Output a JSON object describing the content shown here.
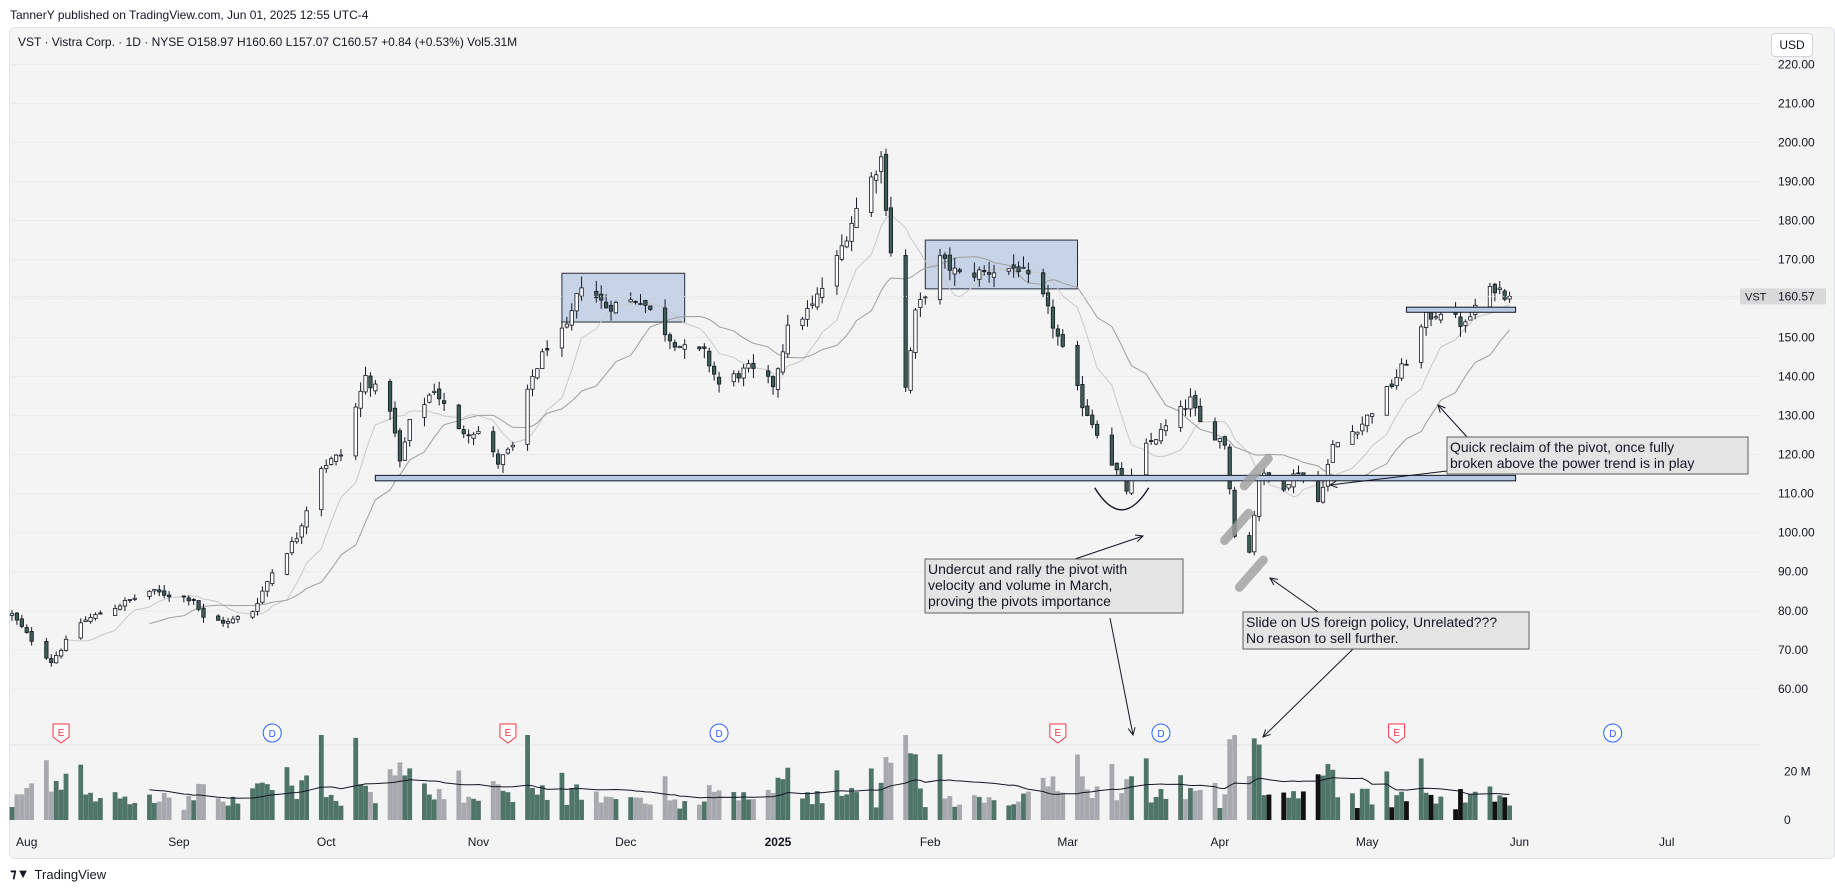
{
  "header": {
    "published": "TannerY published on TradingView.com, Jun 01, 2025 12:55 UTC-4"
  },
  "symbol_line": "VST · Vistra Corp. · 1D · NYSE  O158.97  H160.60  L157.07  C160.57  +0.84 (+0.53%)  Vol5.31M",
  "currency": "USD",
  "price_tag": {
    "symbol": "VST",
    "value": "160.57"
  },
  "footer": {
    "brand": "TradingView"
  },
  "events": [
    {
      "type": "E",
      "date": "2024-08-08"
    },
    {
      "type": "D",
      "date": "2024-09-20"
    },
    {
      "type": "E",
      "date": "2024-11-07"
    },
    {
      "type": "D",
      "date": "2024-12-20"
    },
    {
      "type": "E",
      "date": "2025-02-27"
    },
    {
      "type": "D",
      "date": "2025-03-20"
    },
    {
      "type": "E",
      "date": "2025-05-07"
    },
    {
      "type": "D",
      "date": "2025-06-20"
    }
  ],
  "annotations": [
    {
      "name": "annotation-undercut",
      "lines": [
        "Undercut and rally the pivot with",
        "velocity and volume in March,",
        "proving the pivots importance"
      ]
    },
    {
      "name": "annotation-slide",
      "lines": [
        "Slide on US foreign policy, Unrelated???",
        "No reason to sell further."
      ]
    },
    {
      "name": "annotation-reclaim",
      "lines": [
        "Quick reclaim of the pivot, once fully",
        "broken above the power trend is in play"
      ]
    }
  ],
  "chart_data": {
    "type": "candlestick",
    "symbol": "VST",
    "interval": "1D",
    "y_axis_ticks": [
      "60.00",
      "70.00",
      "80.00",
      "90.00",
      "100.00",
      "110.00",
      "120.00",
      "130.00",
      "140.00",
      "150.00",
      "160.00",
      "170.00",
      "180.00",
      "190.00",
      "200.00",
      "210.00",
      "220.00"
    ],
    "ylim": [
      52,
      225
    ],
    "x_axis_labels": [
      {
        "label": "Aug",
        "date": "2024-08-01"
      },
      {
        "label": "Sep",
        "date": "2024-09-01"
      },
      {
        "label": "Oct",
        "date": "2024-10-01"
      },
      {
        "label": "Nov",
        "date": "2024-11-01"
      },
      {
        "label": "Dec",
        "date": "2024-12-01"
      },
      {
        "label": "2025",
        "date": "2025-01-01",
        "bold": true
      },
      {
        "label": "Feb",
        "date": "2025-02-01"
      },
      {
        "label": "Mar",
        "date": "2025-03-01"
      },
      {
        "label": "Apr",
        "date": "2025-04-01"
      },
      {
        "label": "May",
        "date": "2025-05-01"
      },
      {
        "label": "Jun",
        "date": "2025-06-01"
      },
      {
        "label": "Jul",
        "date": "2025-07-01"
      }
    ],
    "volume_axis": {
      "ticks": [
        "20 M",
        "0"
      ],
      "max_millions": 35
    },
    "close_anchors": [
      [
        "2024-07-29",
        79
      ],
      [
        "2024-08-01",
        74
      ],
      [
        "2024-08-06",
        67
      ],
      [
        "2024-08-12",
        77
      ],
      [
        "2024-08-19",
        81
      ],
      [
        "2024-08-26",
        85
      ],
      [
        "2024-09-04",
        83
      ],
      [
        "2024-09-06",
        78
      ],
      [
        "2024-09-11",
        77
      ],
      [
        "2024-09-16",
        80
      ],
      [
        "2024-09-20",
        90
      ],
      [
        "2024-09-25",
        99
      ],
      [
        "2024-09-30",
        117
      ],
      [
        "2024-10-04",
        120
      ],
      [
        "2024-10-09",
        140
      ],
      [
        "2024-10-14",
        132
      ],
      [
        "2024-10-16",
        118
      ],
      [
        "2024-10-18",
        128
      ],
      [
        "2024-10-23",
        137
      ],
      [
        "2024-10-28",
        126
      ],
      [
        "2024-11-01",
        126
      ],
      [
        "2024-11-05",
        118
      ],
      [
        "2024-11-08",
        122
      ],
      [
        "2024-11-12",
        140
      ],
      [
        "2024-11-15",
        148
      ],
      [
        "2024-11-19",
        152
      ],
      [
        "2024-11-22",
        164
      ],
      [
        "2024-11-27",
        158
      ],
      [
        "2024-12-04",
        160
      ],
      [
        "2024-12-10",
        150
      ],
      [
        "2024-12-13",
        147
      ],
      [
        "2024-12-17",
        146
      ],
      [
        "2024-12-20",
        138
      ],
      [
        "2024-12-26",
        142
      ],
      [
        "2024-12-31",
        138
      ],
      [
        "2025-01-03",
        152
      ],
      [
        "2025-01-08",
        158
      ],
      [
        "2025-01-13",
        170
      ],
      [
        "2025-01-17",
        183
      ],
      [
        "2025-01-22",
        196
      ],
      [
        "2025-01-27",
        137
      ],
      [
        "2025-01-29",
        156
      ],
      [
        "2025-02-03",
        170
      ],
      [
        "2025-02-07",
        166
      ],
      [
        "2025-02-13",
        167
      ],
      [
        "2025-02-19",
        168
      ],
      [
        "2025-02-24",
        160
      ],
      [
        "2025-02-27",
        150
      ],
      [
        "2025-03-04",
        133
      ],
      [
        "2025-03-07",
        126
      ],
      [
        "2025-03-10",
        118
      ],
      [
        "2025-03-13",
        111
      ],
      [
        "2025-03-17",
        122
      ],
      [
        "2025-03-21",
        127
      ],
      [
        "2025-03-26",
        134
      ],
      [
        "2025-03-28",
        128
      ],
      [
        "2025-04-02",
        123
      ],
      [
        "2025-04-04",
        100
      ],
      [
        "2025-04-07",
        95
      ],
      [
        "2025-04-09",
        115
      ],
      [
        "2025-04-14",
        112
      ],
      [
        "2025-04-17",
        116
      ],
      [
        "2025-04-21",
        108
      ],
      [
        "2025-04-24",
        122
      ],
      [
        "2025-04-30",
        128
      ],
      [
        "2025-05-06",
        138
      ],
      [
        "2025-05-09",
        144
      ],
      [
        "2025-05-13",
        155
      ],
      [
        "2025-05-16",
        157
      ],
      [
        "2025-05-21",
        153
      ],
      [
        "2025-05-23",
        158
      ],
      [
        "2025-05-27",
        163
      ],
      [
        "2025-05-30",
        160.57
      ]
    ],
    "last_close": 160.57,
    "highlight_zones": [
      {
        "from": "2024-11-18",
        "to": "2024-12-13",
        "low": 154,
        "high": 166.5
      },
      {
        "from": "2025-01-31",
        "to": "2025-03-03",
        "low": 162.5,
        "high": 175
      }
    ],
    "pivot_level": {
      "from": "2024-10-11",
      "to": "2025-05-30",
      "low": 113.3,
      "high": 114.7
    },
    "breakout_level": {
      "from": "2025-05-09",
      "to": "2025-05-30",
      "low": 156.5,
      "high": 157.8
    }
  },
  "colors": {
    "up_fill": "#ffffff",
    "down_fill": "#3f5f56",
    "candle_border": "#131722",
    "zone_fill": "#b8c9e3",
    "ma_line": "#9e9e9e",
    "earnings": "#f23645",
    "dividend": "#2962ff",
    "vol_green": "#4f7468",
    "vol_grey": "#a7a9ae",
    "vol_dark": "#111111"
  }
}
